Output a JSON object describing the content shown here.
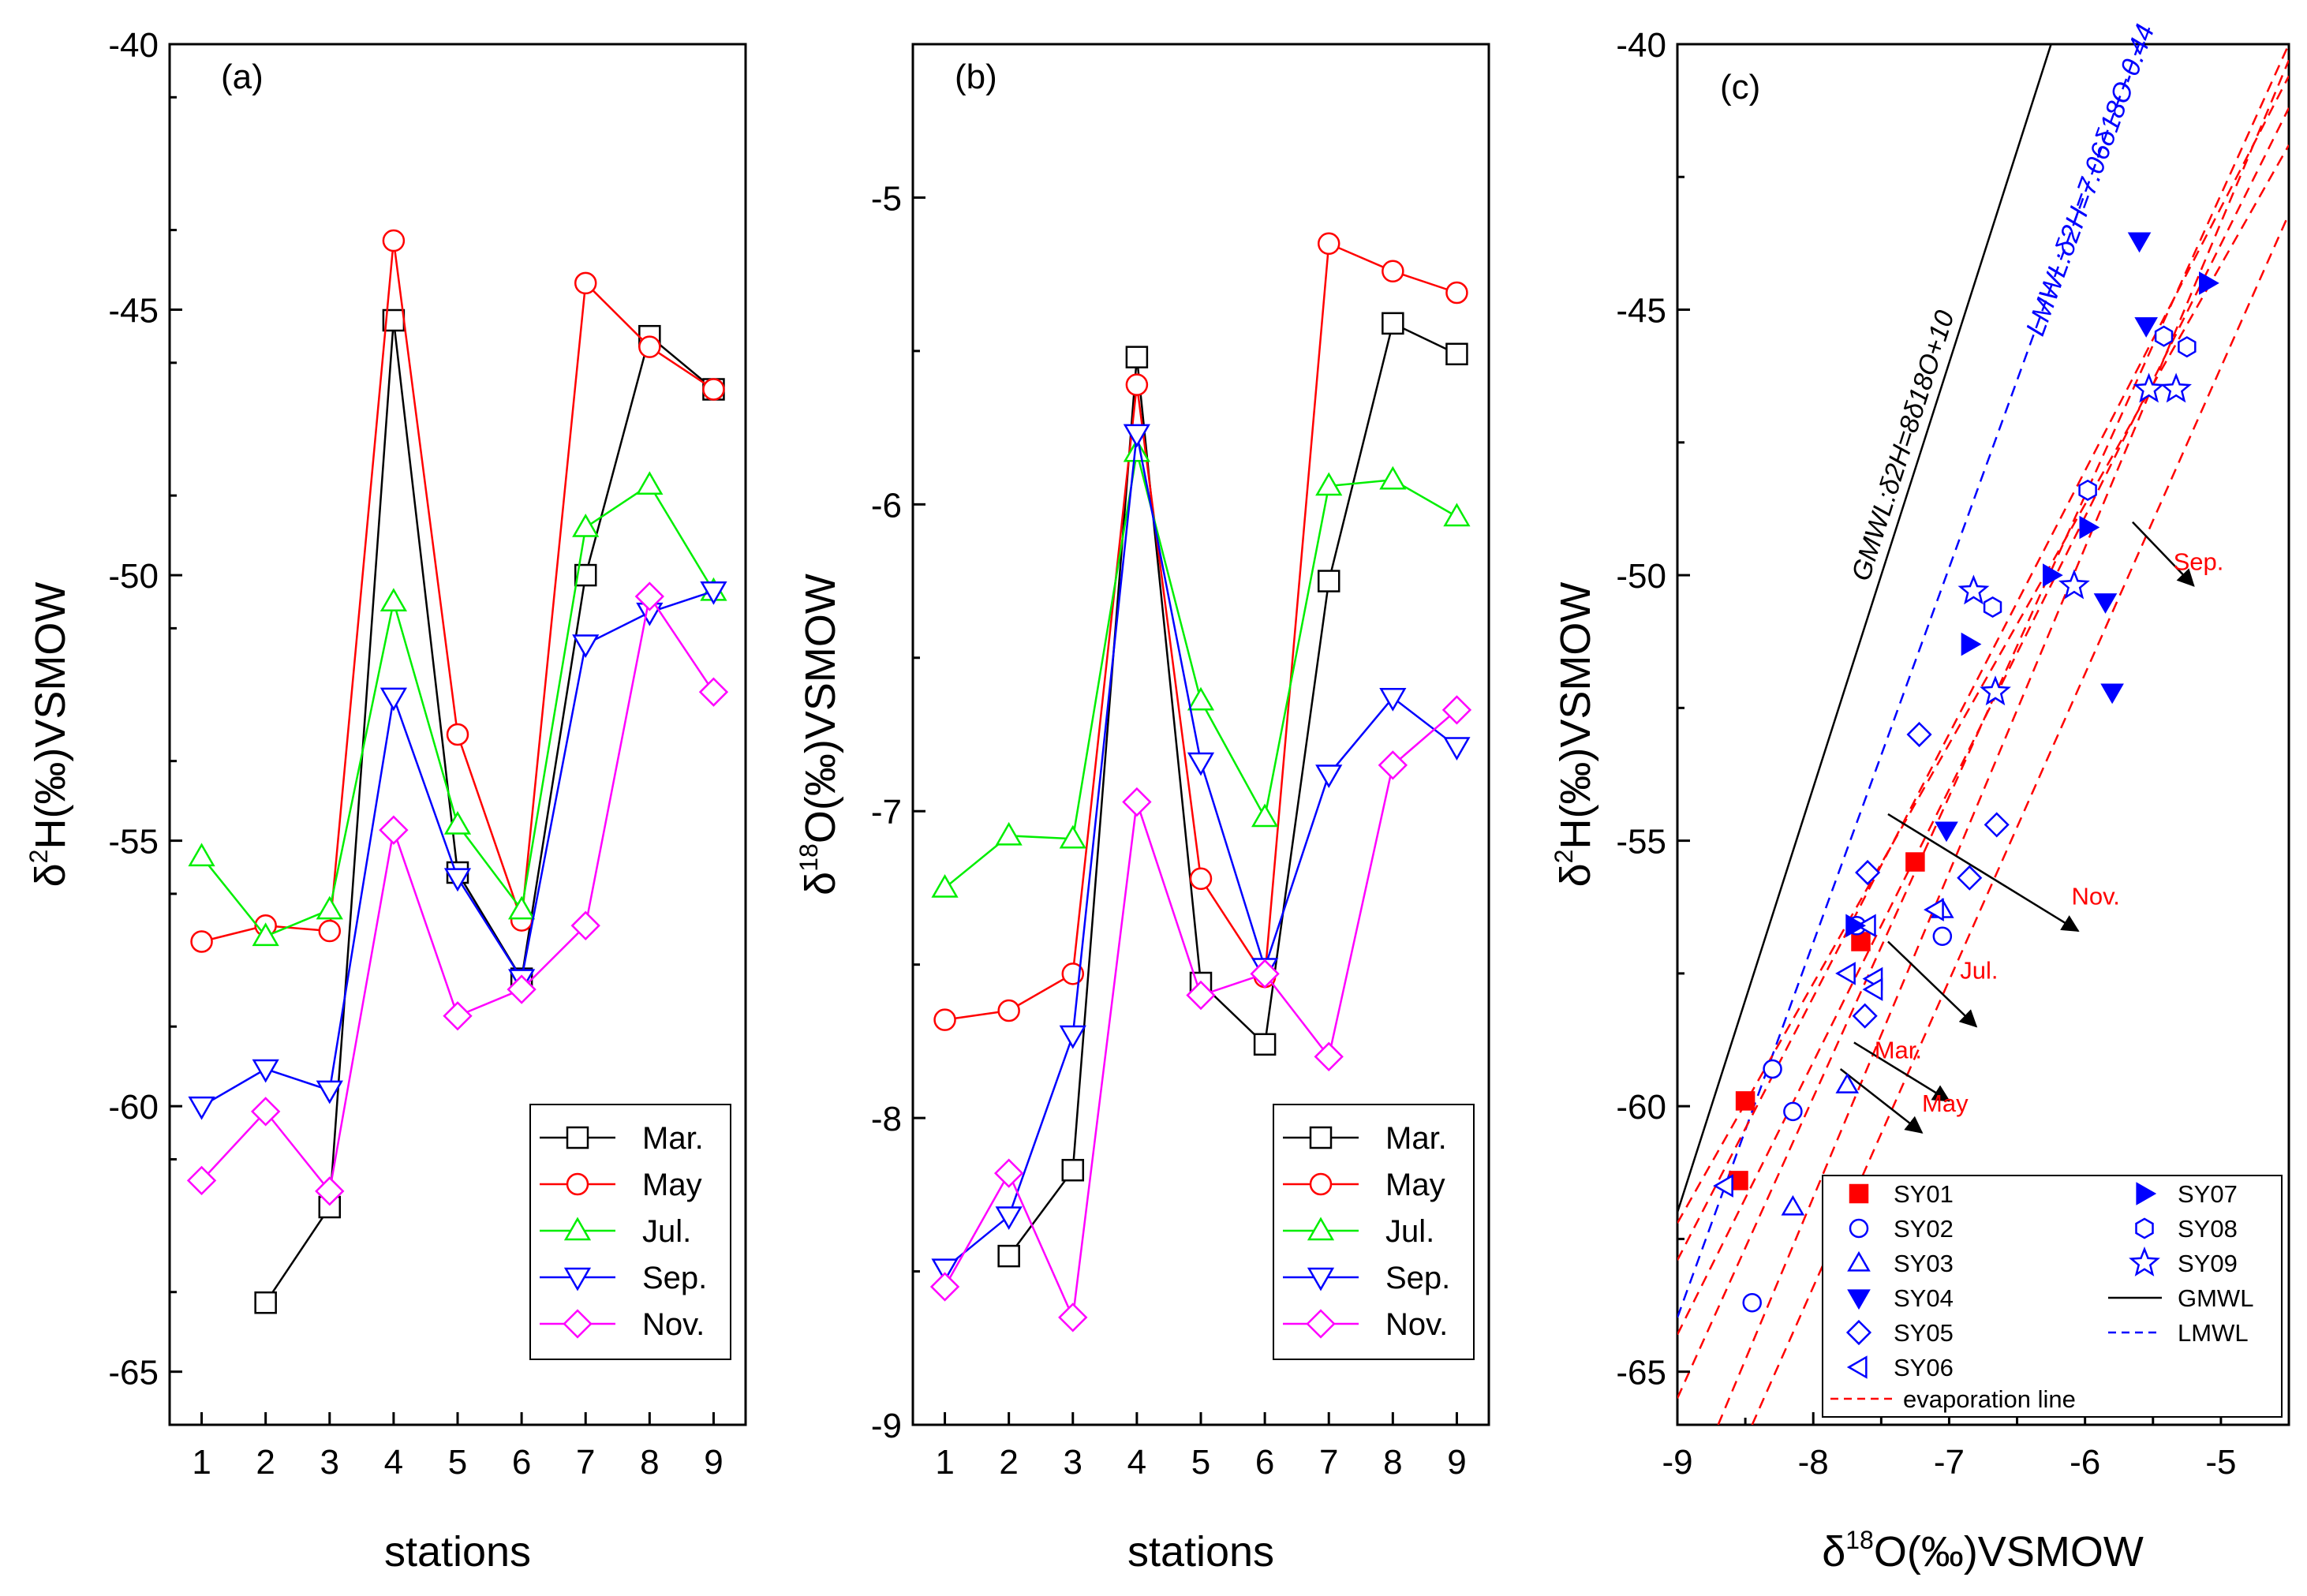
{
  "chart_data": [
    {
      "type": "line",
      "panel_label": "(a)",
      "xlabel": "stations",
      "ylabel": "δ2H(‰)VSMOW",
      "ylabel_parts": {
        "pre": "δ",
        "sup": "2",
        "post": "H(‰)VSMOW"
      },
      "xlim": [
        0.5,
        9.5
      ],
      "ylim": [
        -66,
        -40
      ],
      "x_ticks": [
        1,
        2,
        3,
        4,
        5,
        6,
        7,
        8,
        9
      ],
      "y_ticks": [
        -65,
        -60,
        -55,
        -50,
        -45,
        -40
      ],
      "legend_position": "bottom-right",
      "x": [
        1,
        2,
        3,
        4,
        5,
        6,
        7,
        8,
        9
      ],
      "series": [
        {
          "name": "Mar.",
          "color": "#000000",
          "marker": "square",
          "values": [
            null,
            -63.7,
            -61.9,
            -45.2,
            -55.6,
            -57.6,
            -50.0,
            -45.5,
            -46.5
          ]
        },
        {
          "name": "May",
          "color": "#ff0000",
          "marker": "circle",
          "values": [
            -56.9,
            -56.6,
            -56.7,
            -43.7,
            -53.0,
            -56.5,
            -44.5,
            -45.7,
            -46.5
          ]
        },
        {
          "name": "Jul.",
          "color": "#00ee00",
          "marker": "triangle-up",
          "values": [
            -55.3,
            -56.8,
            -56.3,
            -50.5,
            -54.7,
            -56.3,
            -49.1,
            -48.3,
            -50.3
          ]
        },
        {
          "name": "Sep.",
          "color": "#0000ff",
          "marker": "triangle-down",
          "values": [
            -60.0,
            -59.3,
            -59.7,
            -52.3,
            -55.7,
            -57.6,
            -51.3,
            -50.7,
            -50.3
          ]
        },
        {
          "name": "Nov.",
          "color": "#ff00ff",
          "marker": "diamond",
          "values": [
            -61.4,
            -60.1,
            -61.6,
            -54.8,
            -58.3,
            -57.8,
            -56.6,
            -50.4,
            -52.2
          ]
        }
      ]
    },
    {
      "type": "line",
      "panel_label": "(b)",
      "xlabel": "stations",
      "ylabel": "δ18O(‰)VSMOW",
      "ylabel_parts": {
        "pre": "δ",
        "sup": "18",
        "post": "O(‰)VSMOW"
      },
      "xlim": [
        0.5,
        9.5
      ],
      "ylim": [
        -9,
        -4.5
      ],
      "x_ticks": [
        1,
        2,
        3,
        4,
        5,
        6,
        7,
        8,
        9
      ],
      "y_ticks": [
        -9,
        -8,
        -7,
        -6,
        -5
      ],
      "legend_position": "bottom-right",
      "x": [
        1,
        2,
        3,
        4,
        5,
        6,
        7,
        8,
        9
      ],
      "series": [
        {
          "name": "Mar.",
          "color": "#000000",
          "marker": "square",
          "values": [
            null,
            -8.45,
            -8.17,
            -5.52,
            -7.56,
            -7.76,
            -6.25,
            -5.41,
            -5.51
          ]
        },
        {
          "name": "May",
          "color": "#ff0000",
          "marker": "circle",
          "values": [
            -7.68,
            -7.65,
            -7.53,
            -5.61,
            -7.22,
            -7.54,
            -5.15,
            -5.24,
            -5.31
          ]
        },
        {
          "name": "Jul.",
          "color": "#00ee00",
          "marker": "triangle-up",
          "values": [
            -7.25,
            -7.08,
            -7.09,
            -5.83,
            -6.64,
            -7.02,
            -5.94,
            -5.92,
            -6.04
          ]
        },
        {
          "name": "Sep.",
          "color": "#0000ff",
          "marker": "triangle-down",
          "values": [
            -8.49,
            -8.32,
            -7.73,
            -5.77,
            -6.84,
            -7.51,
            -6.88,
            -6.63,
            -6.79
          ]
        },
        {
          "name": "Nov.",
          "color": "#ff00ff",
          "marker": "diamond",
          "values": [
            -8.55,
            -8.18,
            -8.65,
            -6.97,
            -7.6,
            -7.53,
            -7.8,
            -6.85,
            -6.67
          ]
        }
      ]
    },
    {
      "type": "scatter",
      "panel_label": "(c)",
      "xlabel": "δ18O(‰)VSMOW",
      "xlabel_parts": {
        "pre": "δ",
        "sup": "18",
        "post": "O(‰)VSMOW"
      },
      "ylabel": "δ2H(‰)VSMOW",
      "ylabel_parts": {
        "pre": "δ",
        "sup": "2",
        "post": "H(‰)VSMOW"
      },
      "xlim": [
        -9,
        -4.5
      ],
      "ylim": [
        -66,
        -40
      ],
      "x_ticks": [
        -9,
        -8,
        -7,
        -6,
        -5
      ],
      "y_ticks": [
        -65,
        -60,
        -55,
        -50,
        -45,
        -40
      ],
      "legend_position": "bottom-right",
      "series": [
        {
          "name": "SY01",
          "color": "#ff0000",
          "marker": "square-filled",
          "points": [
            [
              -8.55,
              -61.4
            ],
            [
              -8.5,
              -59.9
            ],
            [
              -7.65,
              -56.9
            ],
            [
              -7.25,
              -55.4
            ]
          ]
        },
        {
          "name": "SY02",
          "color": "#0000ff",
          "marker": "circle",
          "points": [
            [
              -8.45,
              -63.7
            ],
            [
              -8.3,
              -59.3
            ],
            [
              -8.15,
              -60.1
            ],
            [
              -7.68,
              -56.6
            ],
            [
              -7.05,
              -56.8
            ]
          ]
        },
        {
          "name": "SY03",
          "color": "#0000ff",
          "marker": "triangle-up",
          "points": [
            [
              -8.15,
              -61.9
            ],
            [
              -7.75,
              -59.6
            ],
            [
              -7.05,
              -56.3
            ]
          ]
        },
        {
          "name": "SY04",
          "color": "#0000ff",
          "marker": "triangle-down-filled",
          "points": [
            [
              -7.02,
              -54.8
            ],
            [
              -5.85,
              -50.5
            ],
            [
              -5.8,
              -52.2
            ],
            [
              -5.6,
              -43.7
            ],
            [
              -5.55,
              -45.3
            ]
          ]
        },
        {
          "name": "SY05",
          "color": "#0000ff",
          "marker": "diamond",
          "points": [
            [
              -7.6,
              -55.6
            ],
            [
              -7.62,
              -58.3
            ],
            [
              -7.22,
              -53.0
            ],
            [
              -6.85,
              -55.7
            ],
            [
              -6.65,
              -54.7
            ]
          ]
        },
        {
          "name": "SY06",
          "color": "#0000ff",
          "marker": "triangle-left",
          "points": [
            [
              -8.65,
              -61.5
            ],
            [
              -7.75,
              -57.5
            ],
            [
              -7.55,
              -57.6
            ],
            [
              -7.55,
              -57.8
            ],
            [
              -7.6,
              -56.6
            ],
            [
              -7.1,
              -56.3
            ]
          ]
        },
        {
          "name": "SY07",
          "color": "#0000ff",
          "marker": "triangle-right-filled",
          "points": [
            [
              -7.7,
              -56.6
            ],
            [
              -6.85,
              -51.3
            ],
            [
              -6.25,
              -50.0
            ],
            [
              -5.98,
              -49.1
            ],
            [
              -5.1,
              -44.5
            ]
          ]
        },
        {
          "name": "SY08",
          "color": "#0000ff",
          "marker": "hexagon",
          "points": [
            [
              -6.68,
              -50.6
            ],
            [
              -5.98,
              -48.4
            ],
            [
              -5.42,
              -45.5
            ],
            [
              -5.25,
              -45.7
            ]
          ]
        },
        {
          "name": "SY09",
          "color": "#0000ff",
          "marker": "star",
          "points": [
            [
              -6.82,
              -50.3
            ],
            [
              -6.66,
              -52.2
            ],
            [
              -6.08,
              -50.2
            ],
            [
              -5.53,
              -46.5
            ],
            [
              -5.33,
              -46.5
            ]
          ]
        }
      ],
      "lines": [
        {
          "name": "GMWL",
          "style": "solid",
          "color": "#000000",
          "slope": 8,
          "intercept": 10,
          "label": "GMWL:δ2H=8δ18O+10"
        },
        {
          "name": "LMWL",
          "style": "dashed",
          "color": "#0000ff",
          "slope": 7.06,
          "intercept": -0.44,
          "label": "LMWL:δ2H=7.06δ18O-0.44"
        },
        {
          "name": "evaporation line",
          "style": "dashed",
          "color": "#ff0000",
          "segments": [
            {
              "x1": -9.0,
              "y1": -62.9,
              "x2": -4.5,
              "y2": -40.6
            },
            {
              "x1": -9.0,
              "y1": -62.2,
              "x2": -4.5,
              "y2": -41.9
            },
            {
              "x1": -9.0,
              "y1": -64.3,
              "x2": -4.5,
              "y2": -41.2
            },
            {
              "x1": -9.0,
              "y1": -65.5,
              "x2": -4.5,
              "y2": -40.0
            },
            {
              "x1": -8.7,
              "y1": -66.0,
              "x2": -4.5,
              "y2": -40.3
            },
            {
              "x1": -8.45,
              "y1": -66.0,
              "x2": -4.5,
              "y2": -43.2
            }
          ]
        }
      ],
      "annotations": [
        {
          "text": "Sep.",
          "x": -5.35,
          "y": -49.9
        },
        {
          "text": "Nov.",
          "x": -6.1,
          "y": -56.2
        },
        {
          "text": "Jul.",
          "x": -6.92,
          "y": -57.6
        },
        {
          "text": "Mar.",
          "x": -7.55,
          "y": -59.1
        },
        {
          "text": "May",
          "x": -7.2,
          "y": -60.1
        }
      ],
      "arrows": [
        {
          "from": [
            -5.65,
            -49.0
          ],
          "to": [
            -5.2,
            -50.2
          ]
        },
        {
          "from": [
            -7.45,
            -54.5
          ],
          "to": [
            -6.05,
            -56.7
          ]
        },
        {
          "from": [
            -7.45,
            -56.9
          ],
          "to": [
            -6.8,
            -58.5
          ]
        },
        {
          "from": [
            -7.8,
            -59.3
          ],
          "to": [
            -7.2,
            -60.5
          ]
        },
        {
          "from": [
            -7.7,
            -58.8
          ],
          "to": [
            -7.0,
            -59.9
          ]
        }
      ]
    }
  ]
}
